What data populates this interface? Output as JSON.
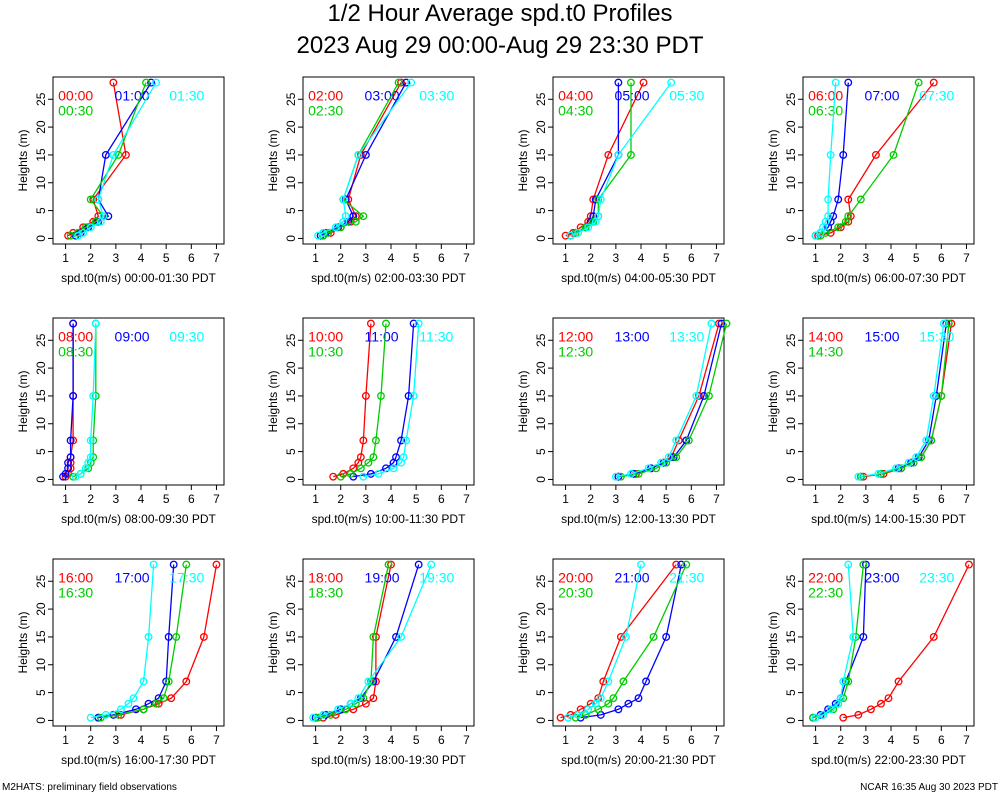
{
  "figure": {
    "title_line1": "1/2 Hour Average spd.t0 Profiles",
    "title_line2": "2023 Aug 29 00:00-Aug 29 23:30 PDT",
    "footer_left": "M2HATS: preliminary field observations",
    "footer_right": "NCAR 16:35 Aug 30 2023 PDT"
  },
  "chart_data": {
    "type": "line",
    "ylabel": "Heights (m)",
    "xlim": [
      0.5,
      7.3
    ],
    "ylim": [
      -1,
      29
    ],
    "xticks": [
      "1",
      "2",
      "3",
      "4",
      "5",
      "6",
      "7"
    ],
    "yticks": [
      "0",
      "5",
      "10",
      "15",
      "20",
      "25"
    ],
    "heights": [
      0.5,
      1,
      2,
      3,
      4,
      7,
      15,
      28
    ],
    "series_colors": [
      "#ff0000",
      "#0000ff",
      "#00cc00",
      "#00ffff"
    ],
    "panels": [
      {
        "xlabel": "spd.t0(m/s) 00:00-01:30 PDT",
        "series": [
          {
            "name": "00:00",
            "values": [
              1.1,
              1.3,
              1.7,
              2.1,
              2.3,
              2.1,
              3.4,
              2.9
            ]
          },
          {
            "name": "01:00",
            "values": [
              1.4,
              1.6,
              1.9,
              2.3,
              2.7,
              2.3,
              2.6,
              4.4
            ]
          },
          {
            "name": "00:30",
            "values": [
              1.2,
              1.5,
              1.8,
              2.2,
              2.5,
              2.0,
              3.1,
              4.2
            ]
          },
          {
            "name": "01:30",
            "values": [
              1.5,
              1.7,
              2.0,
              2.4,
              2.5,
              2.3,
              2.9,
              4.6
            ]
          }
        ]
      },
      {
        "xlabel": "spd.t0(m/s) 02:00-03:30 PDT",
        "series": [
          {
            "name": "02:00",
            "values": [
              1.3,
              1.6,
              2.0,
              2.4,
              2.6,
              2.3,
              2.8,
              4.4
            ]
          },
          {
            "name": "03:00",
            "values": [
              1.2,
              1.4,
              1.9,
              2.3,
              2.5,
              2.2,
              3.0,
              4.6
            ]
          },
          {
            "name": "02:30",
            "values": [
              1.3,
              1.5,
              2.0,
              2.6,
              2.9,
              2.1,
              2.7,
              4.3
            ]
          },
          {
            "name": "03:30",
            "values": [
              1.1,
              1.3,
              1.8,
              2.1,
              2.2,
              2.1,
              2.7,
              4.8
            ]
          }
        ]
      },
      {
        "xlabel": "spd.t0(m/s) 04:00-05:30 PDT",
        "series": [
          {
            "name": "04:00",
            "values": [
              1.0,
              1.3,
              1.6,
              1.9,
              2.0,
              2.1,
              2.7,
              4.1
            ]
          },
          {
            "name": "05:00",
            "values": [
              1.2,
              1.4,
              1.8,
              2.0,
              2.1,
              2.2,
              3.1,
              3.1
            ]
          },
          {
            "name": "04:30",
            "values": [
              1.2,
              1.4,
              1.8,
              2.1,
              2.3,
              2.3,
              3.6,
              3.6
            ]
          },
          {
            "name": "05:30",
            "values": [
              1.2,
              1.5,
              1.9,
              2.2,
              2.3,
              2.4,
              3.1,
              5.2
            ]
          }
        ]
      },
      {
        "xlabel": "spd.t0(m/s) 06:00-07:30 PDT",
        "series": [
          {
            "name": "06:00",
            "values": [
              1.1,
              1.6,
              2.0,
              2.3,
              2.4,
              2.3,
              3.4,
              5.7
            ]
          },
          {
            "name": "07:00",
            "values": [
              1.0,
              1.2,
              1.5,
              1.6,
              1.7,
              1.9,
              2.1,
              2.3
            ]
          },
          {
            "name": "06:30",
            "values": [
              1.2,
              1.4,
              1.9,
              2.2,
              2.3,
              2.8,
              4.1,
              5.1
            ]
          },
          {
            "name": "07:30",
            "values": [
              1.0,
              1.2,
              1.3,
              1.4,
              1.5,
              1.5,
              1.6,
              1.8
            ]
          }
        ]
      },
      {
        "xlabel": "spd.t0(m/s) 08:00-09:30 PDT",
        "series": [
          {
            "name": "08:00",
            "values": [
              1.0,
              1.1,
              1.2,
              1.2,
              1.2,
              1.3,
              1.3,
              1.3
            ]
          },
          {
            "name": "09:00",
            "values": [
              0.9,
              1.0,
              1.1,
              1.1,
              1.2,
              1.2,
              1.3,
              1.3
            ]
          },
          {
            "name": "08:30",
            "values": [
              1.3,
              1.6,
              1.9,
              2.0,
              2.1,
              2.1,
              2.2,
              2.2
            ]
          },
          {
            "name": "09:30",
            "values": [
              1.4,
              1.6,
              1.8,
              1.9,
              2.0,
              2.0,
              2.1,
              2.2
            ]
          }
        ]
      },
      {
        "xlabel": "spd.t0(m/s) 10:00-11:30 PDT",
        "series": [
          {
            "name": "10:00",
            "values": [
              1.7,
              2.1,
              2.5,
              2.7,
              2.8,
              2.9,
              3.0,
              3.2
            ]
          },
          {
            "name": "11:00",
            "values": [
              2.5,
              3.2,
              3.8,
              4.1,
              4.2,
              4.4,
              4.7,
              4.9
            ]
          },
          {
            "name": "10:30",
            "values": [
              2.0,
              2.4,
              2.8,
              3.1,
              3.3,
              3.4,
              3.6,
              3.8
            ]
          },
          {
            "name": "11:30",
            "values": [
              2.9,
              3.5,
              4.1,
              4.4,
              4.5,
              4.6,
              4.9,
              5.1
            ]
          }
        ]
      },
      {
        "xlabel": "spd.t0(m/s) 12:00-13:30 PDT",
        "series": [
          {
            "name": "12:00",
            "values": [
              3.1,
              3.8,
              4.4,
              4.9,
              5.2,
              5.5,
              6.3,
              7.1
            ]
          },
          {
            "name": "13:00",
            "values": [
              3.1,
              3.7,
              4.4,
              4.9,
              5.3,
              5.8,
              6.5,
              7.2
            ]
          },
          {
            "name": "12:30",
            "values": [
              3.2,
              3.9,
              4.6,
              5.0,
              5.4,
              5.9,
              6.7,
              7.4
            ]
          },
          {
            "name": "13:30",
            "values": [
              3.0,
              3.6,
              4.3,
              4.8,
              5.1,
              5.4,
              6.2,
              6.8
            ]
          }
        ]
      },
      {
        "xlabel": "spd.t0(m/s) 14:00-15:30 PDT",
        "series": [
          {
            "name": "14:00",
            "values": [
              2.9,
              3.7,
              4.4,
              4.8,
              5.2,
              5.6,
              6.0,
              6.4
            ]
          },
          {
            "name": "15:00",
            "values": [
              2.8,
              3.6,
              4.3,
              4.8,
              5.1,
              5.5,
              5.8,
              6.2
            ]
          },
          {
            "name": "14:30",
            "values": [
              2.8,
              3.6,
              4.4,
              4.9,
              5.2,
              5.6,
              6.0,
              6.3
            ]
          },
          {
            "name": "15:30",
            "values": [
              2.7,
              3.5,
              4.2,
              4.7,
              5.0,
              5.4,
              5.7,
              6.1
            ]
          }
        ]
      },
      {
        "xlabel": "spd.t0(m/s) 16:00-17:30 PDT",
        "series": [
          {
            "name": "16:00",
            "values": [
              2.3,
              3.2,
              4.1,
              4.7,
              5.2,
              5.8,
              6.5,
              7.0
            ]
          },
          {
            "name": "17:00",
            "values": [
              2.3,
              2.9,
              3.8,
              4.3,
              4.7,
              5.0,
              5.1,
              5.3
            ]
          },
          {
            "name": "16:30",
            "values": [
              2.4,
              3.1,
              4.1,
              4.6,
              4.9,
              5.1,
              5.4,
              5.8
            ]
          },
          {
            "name": "17:30",
            "values": [
              2.0,
              2.6,
              3.2,
              3.5,
              3.7,
              4.1,
              4.3,
              4.5
            ]
          }
        ]
      },
      {
        "xlabel": "spd.t0(m/s) 18:00-19:30 PDT",
        "series": [
          {
            "name": "18:00",
            "values": [
              1.3,
              1.8,
              2.5,
              3.0,
              3.3,
              3.4,
              3.4,
              4.0
            ]
          },
          {
            "name": "19:00",
            "values": [
              1.0,
              1.4,
              2.0,
              2.4,
              2.8,
              3.3,
              4.2,
              5.1
            ]
          },
          {
            "name": "18:30",
            "values": [
              1.1,
              1.6,
              2.2,
              2.6,
              2.9,
              3.2,
              3.3,
              3.9
            ]
          },
          {
            "name": "19:30",
            "values": [
              0.9,
              1.3,
              1.9,
              2.4,
              2.7,
              3.1,
              4.4,
              5.6
            ]
          }
        ]
      },
      {
        "xlabel": "spd.t0(m/s) 20:00-21:30 PDT",
        "series": [
          {
            "name": "20:00",
            "values": [
              0.8,
              1.2,
              1.6,
              2.0,
              2.3,
              2.5,
              3.2,
              5.4
            ]
          },
          {
            "name": "21:00",
            "values": [
              1.6,
              2.4,
              3.1,
              3.5,
              3.9,
              4.2,
              5.0,
              5.6
            ]
          },
          {
            "name": "20:30",
            "values": [
              1.4,
              1.8,
              2.3,
              2.7,
              2.9,
              3.3,
              4.5,
              5.8
            ]
          },
          {
            "name": "21:30",
            "values": [
              1.1,
              1.5,
              1.9,
              2.2,
              2.4,
              2.7,
              3.4,
              4.0
            ]
          }
        ]
      },
      {
        "xlabel": "spd.t0(m/s) 22:00-23:30 PDT",
        "series": [
          {
            "name": "22:00",
            "values": [
              2.1,
              2.7,
              3.2,
              3.6,
              3.9,
              4.3,
              5.7,
              7.1
            ]
          },
          {
            "name": "23:00",
            "values": [
              0.9,
              1.2,
              1.5,
              1.8,
              2.0,
              2.2,
              2.9,
              3.0
            ]
          },
          {
            "name": "22:30",
            "values": [
              0.9,
              1.3,
              1.7,
              1.9,
              2.1,
              2.3,
              2.6,
              2.9
            ]
          },
          {
            "name": "23:30",
            "values": [
              1.0,
              1.3,
              1.6,
              1.9,
              2.0,
              2.1,
              2.5,
              2.3
            ]
          }
        ]
      }
    ]
  }
}
